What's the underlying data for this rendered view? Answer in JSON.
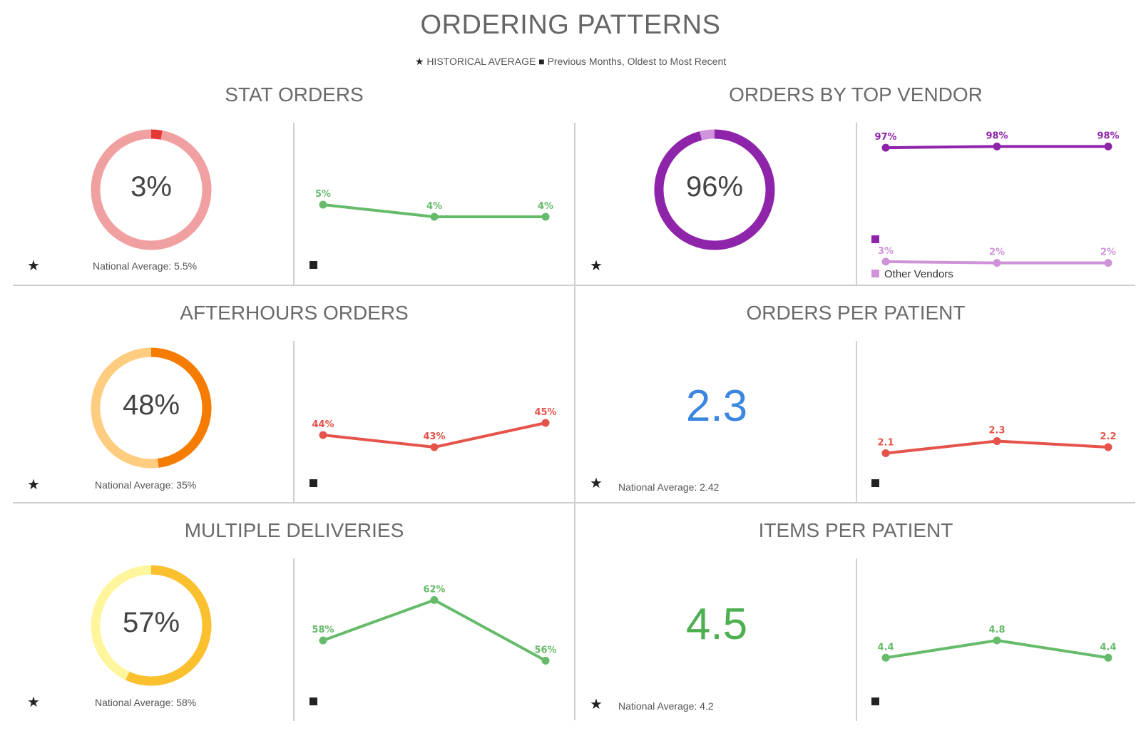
{
  "title": "ORDERING PATTERNS",
  "legend": {
    "star_symbol": "★",
    "historical": "HISTORICAL AVERAGE",
    "square_symbol": "■",
    "previous": "Previous Months, Oldest to Most Recent"
  },
  "colors": {
    "green": "#66bb6a",
    "red": "#e5534b",
    "purple": "#8e24aa",
    "light_purple": "#ce93d8",
    "blue": "#3a86e0",
    "stat_ring": "#f0a0a0",
    "stat_accent": "#e53935",
    "vendor_ring": "#8e24aa",
    "vendor_accent": "#ce93d8",
    "after_light": "#ffcc80",
    "after_dark": "#f57c00",
    "multi_light": "#fff59d",
    "multi_dark": "#fbc02d"
  },
  "sections": {
    "stat": {
      "title": "STAT ORDERS",
      "value_text": "3%",
      "value": 3,
      "national_average": "National Average: 5.5%"
    },
    "vendor": {
      "title": "ORDERS BY TOP VENDOR",
      "value_text": "96%",
      "value": 96,
      "other_vendors_label": "Other Vendors"
    },
    "afterhours": {
      "title": "AFTERHOURS ORDERS",
      "value_text": "48%",
      "value": 48,
      "national_average": "National Average: 35%"
    },
    "opp": {
      "title": "ORDERS PER PATIENT",
      "value_text": "2.3",
      "national_average": "National Average: 2.42"
    },
    "multi": {
      "title": "MULTIPLE DELIVERIES",
      "value_text": "57%",
      "value": 57,
      "national_average": "National Average: 58%"
    },
    "ipp": {
      "title": "ITEMS PER PATIENT",
      "value_text": "4.5",
      "national_average": "National Average: 4.2"
    }
  },
  "chart_data": [
    {
      "id": "stat-trend",
      "type": "line",
      "x": [
        1,
        2,
        3
      ],
      "ylim": [
        0,
        10
      ],
      "series": [
        {
          "values": [
            5,
            4,
            4
          ],
          "labels": [
            "5%",
            "4%",
            "4%"
          ],
          "color": "#66bb6a"
        }
      ]
    },
    {
      "id": "vendor-trend",
      "type": "line",
      "x": [
        1,
        2,
        3
      ],
      "ylim": [
        0,
        100
      ],
      "series": [
        {
          "values": [
            97,
            98,
            98
          ],
          "labels": [
            "97%",
            "98%",
            "98%"
          ],
          "color": "#8e24aa"
        },
        {
          "name": "Other Vendors",
          "values": [
            3,
            2,
            2
          ],
          "labels": [
            "3%",
            "2%",
            "2%"
          ],
          "color": "#ce93d8"
        }
      ]
    },
    {
      "id": "afterhours-trend",
      "type": "line",
      "x": [
        1,
        2,
        3
      ],
      "ylim": [
        40,
        50
      ],
      "series": [
        {
          "values": [
            44,
            43,
            45
          ],
          "labels": [
            "44%",
            "43%",
            "45%"
          ],
          "color": "#e5534b"
        }
      ]
    },
    {
      "id": "opp-trend",
      "type": "line",
      "x": [
        1,
        2,
        3
      ],
      "ylim": [
        1.6,
        3.6
      ],
      "series": [
        {
          "values": [
            2.1,
            2.3,
            2.2
          ],
          "labels": [
            "2.1",
            "2.3",
            "2.2"
          ],
          "color": "#e5534b"
        }
      ]
    },
    {
      "id": "multi-trend",
      "type": "line",
      "x": [
        1,
        2,
        3
      ],
      "ylim": [
        52,
        64
      ],
      "series": [
        {
          "values": [
            58,
            62,
            56
          ],
          "labels": [
            "58%",
            "62%",
            "56%"
          ],
          "color": "#66bb6a"
        }
      ]
    },
    {
      "id": "ipp-trend",
      "type": "line",
      "x": [
        1,
        2,
        3
      ],
      "ylim": [
        3.4,
        6.2
      ],
      "series": [
        {
          "values": [
            4.4,
            4.8,
            4.4
          ],
          "labels": [
            "4.4",
            "4.8",
            "4.4"
          ],
          "color": "#66bb6a"
        }
      ]
    }
  ]
}
